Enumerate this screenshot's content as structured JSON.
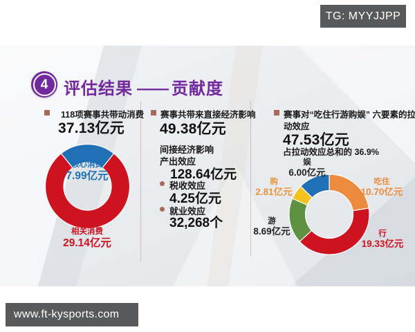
{
  "theme": {
    "purple": "#71299d",
    "bullet": "#a66a5a",
    "badge-bg": "#58595b",
    "text": "#1a1a1a",
    "divider": "#b49c8a"
  },
  "top_badge": {
    "text": "TG: MYYJJPP"
  },
  "footer_badge": {
    "text": "www.ft-kysports.com"
  },
  "header": {
    "number": "4",
    "title": "评估结果",
    "dash": "——",
    "subtitle": "贡献度"
  },
  "columns": {
    "consumption": {
      "heading": "118项赛事共带动消费",
      "value": "37.13亿元"
    },
    "economic": {
      "heading": "赛事共带来直接经济影响",
      "value": "49.38亿元",
      "indirect_heading": "间接经济影响",
      "items": [
        {
          "label": "产出效应",
          "value": "128.64亿元"
        },
        {
          "label": "税收效应",
          "value": "4.25亿元"
        },
        {
          "label": "就业效应",
          "value": "32,268个"
        }
      ]
    },
    "pull_effect": {
      "heading_line1": "赛事对“吃住行游购娱” 六要素的拉",
      "heading_line2": "动效应",
      "value": "47.53亿元",
      "note": "占拉动效应总和的 36.9%"
    }
  },
  "chart_data": [
    {
      "type": "pie",
      "subtype": "donut",
      "title": "118项赛事共带动消费 37.13亿元",
      "unit": "亿元",
      "total": 37.13,
      "start_angle_deg": -38.73,
      "legend_position": "inside-top and below",
      "segments": [
        {
          "label": "核心消费",
          "value": 7.99,
          "display": "7.99亿元",
          "color": "#1f70b4",
          "label_color": "#1f70b4"
        },
        {
          "label": "相关消费",
          "value": 29.14,
          "display": "29.14亿元",
          "color": "#cd1220",
          "label_color": "#cd1220"
        }
      ]
    },
    {
      "type": "pie",
      "subtype": "donut",
      "title": "赛事对“吃住行游购娱”六要素的拉动效应 47.53亿元",
      "unit": "亿元",
      "total": 47.53,
      "start_angle_deg": 0,
      "legend_position": "around",
      "segments": [
        {
          "label": "吃住",
          "value": 10.7,
          "display": "10.70亿元",
          "color": "#ed8a3c",
          "label_color": "#ed8a3c"
        },
        {
          "label": "行",
          "value": 19.33,
          "display": "19.33亿元",
          "color": "#cd1220",
          "label_color": "#cd1220"
        },
        {
          "label": "游",
          "value": 8.69,
          "display": "8.69亿元",
          "color": "#5e9140",
          "label_color": "#222222"
        },
        {
          "label": "购",
          "value": 2.81,
          "display": "2.81亿元",
          "color": "#f3c21e",
          "label_color": "#e8963c"
        },
        {
          "label": "娱",
          "value": 6.0,
          "display": "6.00亿元",
          "color": "#1f70b4",
          "label_color": "#222222"
        }
      ]
    }
  ]
}
